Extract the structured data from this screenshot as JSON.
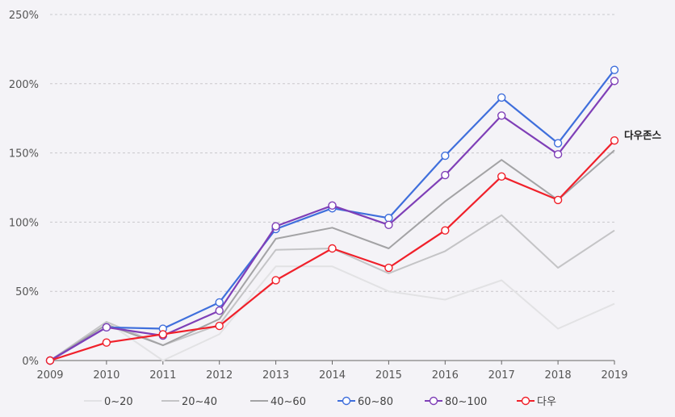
{
  "chart_data": {
    "type": "line",
    "title": "",
    "xlabel": "",
    "ylabel": "",
    "x": [
      "2009",
      "2010",
      "2011",
      "2012",
      "2013",
      "2014",
      "2015",
      "2016",
      "2017",
      "2018",
      "2019"
    ],
    "ylim": [
      0,
      250
    ],
    "yticks": [
      0,
      50,
      100,
      150,
      200,
      250
    ],
    "ytick_labels": [
      "0%",
      "50%",
      "100%",
      "150%",
      "200%",
      "250%"
    ],
    "grid": true,
    "legend_placement": "bottom",
    "series": [
      {
        "name": "0~20",
        "color": "#e2e2e4",
        "markers": false,
        "values": [
          0,
          28,
          0,
          19,
          68,
          68,
          50,
          44,
          58,
          23,
          41
        ]
      },
      {
        "name": "20~40",
        "color": "#c4c4c6",
        "markers": false,
        "values": [
          0,
          28,
          11,
          26,
          80,
          81,
          63,
          79,
          105,
          67,
          94
        ]
      },
      {
        "name": "40~60",
        "color": "#a3a3a5",
        "markers": false,
        "values": [
          0,
          26,
          11,
          30,
          88,
          96,
          81,
          115,
          145,
          116,
          152
        ]
      },
      {
        "name": "60~80",
        "color": "#3f6fdc",
        "markers": true,
        "values": [
          0,
          24,
          23,
          42,
          95,
          110,
          103,
          148,
          190,
          157,
          210
        ]
      },
      {
        "name": "80~100",
        "color": "#7f3fb7",
        "markers": true,
        "values": [
          0,
          24,
          18,
          36,
          97,
          112,
          98,
          134,
          177,
          149,
          202
        ]
      },
      {
        "name": "다우",
        "color": "#f0202a",
        "markers": true,
        "values": [
          0,
          13,
          19,
          25,
          58,
          81,
          67,
          94,
          133,
          116,
          159
        ]
      }
    ],
    "annotations": [
      {
        "text": "다우존스",
        "x": "2019",
        "y": 159
      }
    ]
  }
}
